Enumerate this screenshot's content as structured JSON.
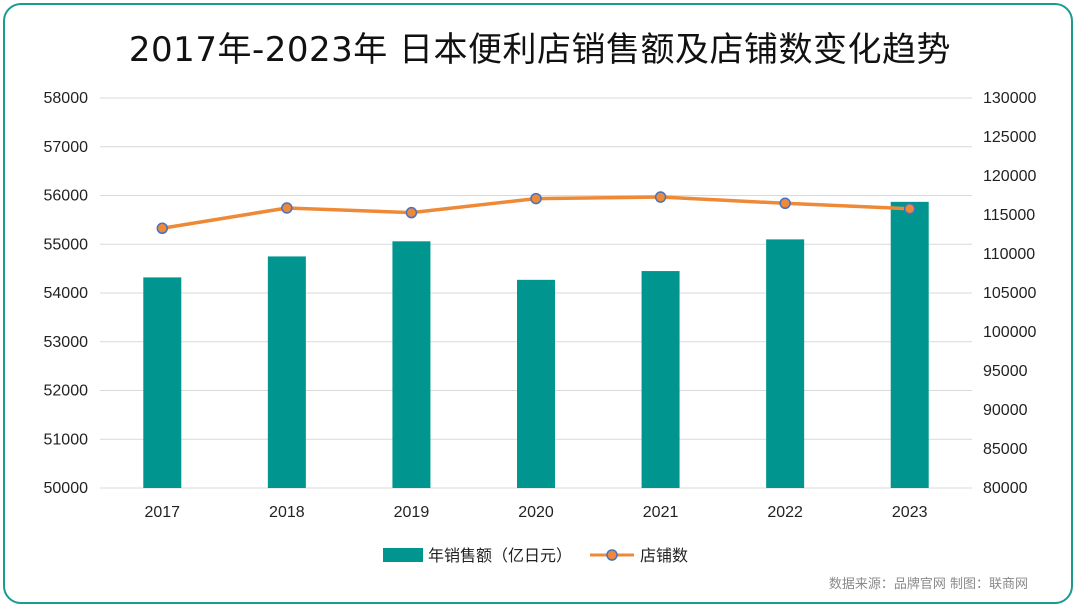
{
  "title": "2017年-2023年 日本便利店销售额及店铺数变化趋势",
  "source_note": "数据来源：品牌官网  制图：联商网",
  "colors": {
    "bar": "#00968f",
    "line": "#ee8a37",
    "marker_edge": "#4472c4",
    "frame": "#1a9a90"
  },
  "chart_data": {
    "type": "bar",
    "categories": [
      "2017",
      "2018",
      "2019",
      "2020",
      "2021",
      "2022",
      "2023"
    ],
    "y_left": {
      "min": 50000,
      "max": 58000,
      "step": 1000,
      "ticks": [
        "58000",
        "57000",
        "56000",
        "55000",
        "54000",
        "53000",
        "52000",
        "51000",
        "50000"
      ]
    },
    "y_right": {
      "min": 80000,
      "max": 130000,
      "step": 5000,
      "ticks": [
        "130000",
        "125000",
        "120000",
        "115000",
        "110000",
        "105000",
        "100000",
        "95000",
        "90000",
        "85000",
        "80000"
      ]
    },
    "grid": true,
    "legend_position": "bottom",
    "series": [
      {
        "name": "年销售额（亿日元）",
        "type": "bar",
        "axis": "left",
        "values": [
          54320,
          54750,
          55060,
          54270,
          54450,
          55100,
          55870
        ]
      },
      {
        "name": "店铺数",
        "type": "line",
        "axis": "right",
        "values": [
          113300,
          115900,
          115300,
          117100,
          117300,
          116500,
          115800
        ]
      }
    ]
  }
}
